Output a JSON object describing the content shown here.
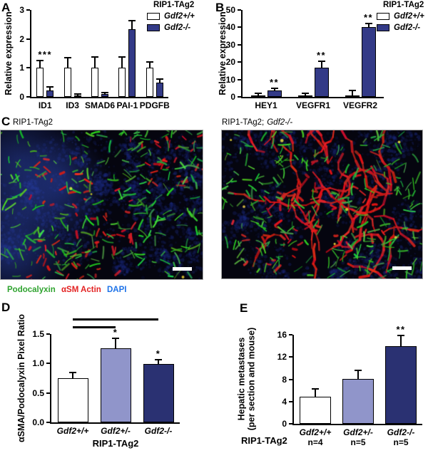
{
  "panels": {
    "A": {
      "label": "A"
    },
    "B": {
      "label": "B"
    },
    "C": {
      "label": "C",
      "images": [
        {
          "title": "RIP1-TAg2"
        },
        {
          "title_prefix": "RIP1-TAg2;",
          "title_italic": "Gdf2-/-"
        }
      ],
      "stains": [
        {
          "label": "Podocalyxin",
          "color": "#2fa32f"
        },
        {
          "label": "αSM Actin",
          "color": "#e32222"
        },
        {
          "label": "DAPI",
          "color": "#1e73e8"
        }
      ],
      "scale_bar": true
    },
    "D": {
      "label": "D"
    },
    "E": {
      "label": "E"
    }
  },
  "chart_data": [
    {
      "id": "A",
      "type": "bar",
      "ylabel": "Relative expression",
      "ylim": [
        0,
        3
      ],
      "yticks": [
        "0",
        "1",
        "2",
        "3"
      ],
      "categories": [
        "ID1",
        "ID3",
        "SMAD6",
        "PAI-1",
        "PDGFB"
      ],
      "legend_title": "RIP1-TAg2",
      "legend_position": "top-right",
      "grid": false,
      "series": [
        {
          "name": "Gdf2+/+",
          "color": "#ffffff",
          "values": [
            1.0,
            1.0,
            1.0,
            1.0,
            1.0
          ],
          "errors": [
            0.22,
            0.33,
            0.36,
            0.36,
            0.18
          ]
        },
        {
          "name": "Gdf2-/-",
          "color": "#333a87",
          "values": [
            0.22,
            0.06,
            0.09,
            2.33,
            0.5
          ],
          "errors": [
            0.1,
            0.02,
            0.03,
            0.28,
            0.09
          ]
        }
      ],
      "annotations": [
        {
          "text": "***",
          "category": "ID1"
        }
      ]
    },
    {
      "id": "B",
      "type": "bar",
      "ylabel": "Relative expression",
      "ylim": [
        0,
        50
      ],
      "yticks": [
        "0",
        "10",
        "20",
        "30",
        "40",
        "50"
      ],
      "categories": [
        "HEY1",
        "VEGFR1",
        "VEGFR2"
      ],
      "legend_title": "RIP1-TAg2",
      "legend_position": "top-right",
      "grid": false,
      "series": [
        {
          "name": "Gdf2+/+",
          "color": "#ffffff",
          "values": [
            1.0,
            1.0,
            1.0
          ],
          "errors": [
            0.8,
            0.8,
            2.2
          ]
        },
        {
          "name": "Gdf2-/-",
          "color": "#333a87",
          "values": [
            3.8,
            17.0,
            40.0
          ],
          "errors": [
            0.9,
            3.2,
            2.0
          ]
        }
      ],
      "annotations": [
        {
          "text": "**",
          "category": "HEY1",
          "series": 1
        },
        {
          "text": "**",
          "category": "VEGFR1",
          "series": 1
        },
        {
          "text": "**",
          "category": "VEGFR2",
          "series": 1
        }
      ]
    },
    {
      "id": "D",
      "type": "bar",
      "ylabel": "αSMA/Podocalyxin Pixel Ratio",
      "ylim": [
        0,
        1.5
      ],
      "yticks": [
        "0.0",
        "0.5",
        "1.0",
        "1.5"
      ],
      "categories": [
        "Gdf2+/+",
        "Gdf2+/-",
        "Gdf2-/-"
      ],
      "xlabel": "RIP1-TAg2",
      "grid": false,
      "series": [
        {
          "name": "",
          "colors": [
            "#ffffff",
            "#9095ca",
            "#2a3172"
          ],
          "values": [
            0.75,
            1.26,
            0.99
          ],
          "errors": [
            0.08,
            0.15,
            0.06
          ]
        }
      ],
      "annotations": [
        {
          "text": "*",
          "category": "Gdf2+/-",
          "series": 0
        },
        {
          "text": "*",
          "category": "Gdf2-/-",
          "series": 0
        }
      ],
      "comparisons": [
        {
          "from": "Gdf2+/+",
          "to": "Gdf2+/-",
          "level": 1
        },
        {
          "from": "Gdf2+/+",
          "to": "Gdf2-/-",
          "level": 2
        }
      ]
    },
    {
      "id": "E",
      "type": "bar",
      "ylabel": [
        "Hepatic metastases",
        "(per section and mouse)"
      ],
      "ylim": [
        0,
        16
      ],
      "yticks": [
        "0",
        "4",
        "8",
        "12",
        "16"
      ],
      "categories": [
        "Gdf2+/+",
        "Gdf2+/-",
        "Gdf2-/-"
      ],
      "category_subs": [
        "n=4",
        "n=5",
        "n=5"
      ],
      "xlabel": "RIP1-TAg2",
      "grid": false,
      "series": [
        {
          "name": "",
          "colors": [
            "#ffffff",
            "#9095ca",
            "#2a3172"
          ],
          "values": [
            4.9,
            8.1,
            14.0
          ],
          "errors": [
            1.3,
            1.4,
            1.7
          ]
        }
      ],
      "annotations": [
        {
          "text": "**",
          "category": "Gdf2-/-",
          "series": 0
        }
      ]
    }
  ]
}
